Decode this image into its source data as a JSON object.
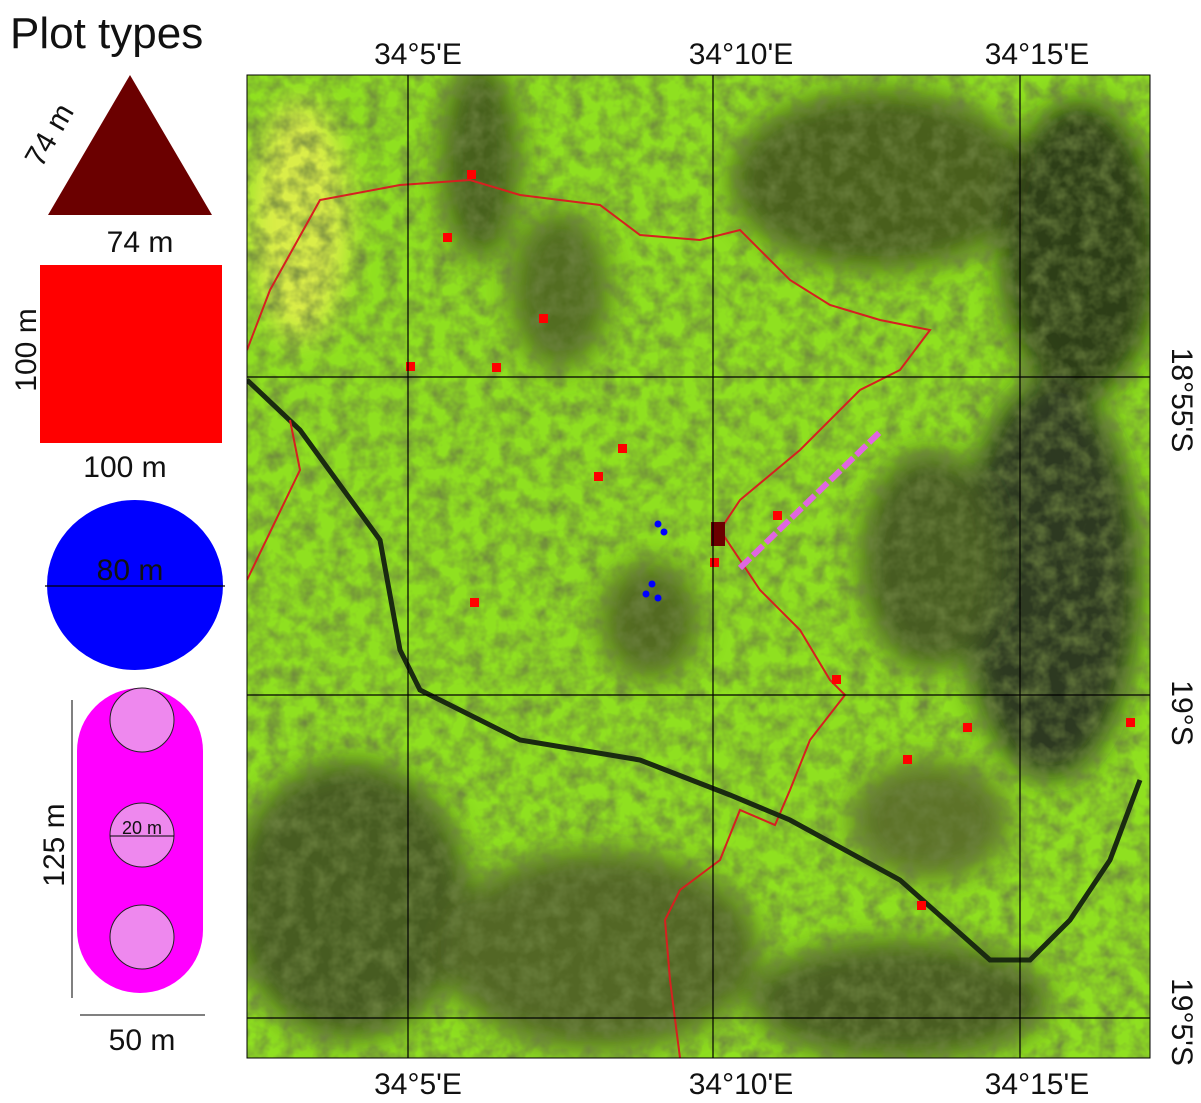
{
  "legend": {
    "title": "Plot types",
    "triangle": {
      "side_label": "74 m",
      "base_label": "74 m"
    },
    "square": {
      "height_label": "100 m",
      "width_label": "100 m"
    },
    "circle": {
      "diameter_label": "80 m"
    },
    "cluster": {
      "subplot_label": "20 m",
      "length_label": "125 m",
      "width_label": "50 m"
    }
  },
  "map": {
    "top_labels": [
      "34°5'E",
      "34°10'E",
      "34°15'E"
    ],
    "bottom_labels": [
      "34°5'E",
      "34°10'E",
      "34°15'E"
    ],
    "right_labels": [
      "18°55'S",
      "19°S",
      "19°5'S"
    ]
  }
}
